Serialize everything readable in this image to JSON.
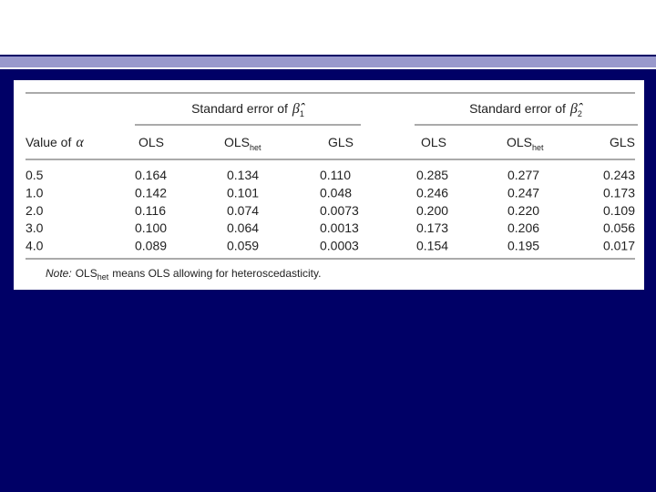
{
  "table": {
    "group_headers": [
      {
        "text": "Standard error of",
        "symbol": "β̂",
        "sub": "1"
      },
      {
        "text": "Standard error of",
        "symbol": "β̂",
        "sub": "2"
      }
    ],
    "columns": [
      {
        "text": "Value of",
        "symbol": "α"
      },
      {
        "text": "OLS"
      },
      {
        "text": "OLS",
        "sub": "het"
      },
      {
        "text": "GLS"
      },
      {
        "text": "OLS"
      },
      {
        "text": "OLS",
        "sub": "het"
      },
      {
        "text": "GLS"
      }
    ],
    "rows": [
      [
        "0.5",
        "0.164",
        "0.134",
        "0.110",
        "0.285",
        "0.277",
        "0.243"
      ],
      [
        "1.0",
        "0.142",
        "0.101",
        "0.048",
        "0.246",
        "0.247",
        "0.173"
      ],
      [
        "2.0",
        "0.116",
        "0.074",
        "0.0073",
        "0.200",
        "0.220",
        "0.109"
      ],
      [
        "3.0",
        "0.100",
        "0.064",
        "0.0013",
        "0.173",
        "0.206",
        "0.056"
      ],
      [
        "4.0",
        "0.089",
        "0.059",
        "0.0003",
        "0.154",
        "0.195",
        "0.017"
      ]
    ],
    "note": {
      "label": "Note:",
      "text": "OLS",
      "sub": "het",
      "rest": "means OLS allowing for heteroscedasticity."
    }
  }
}
